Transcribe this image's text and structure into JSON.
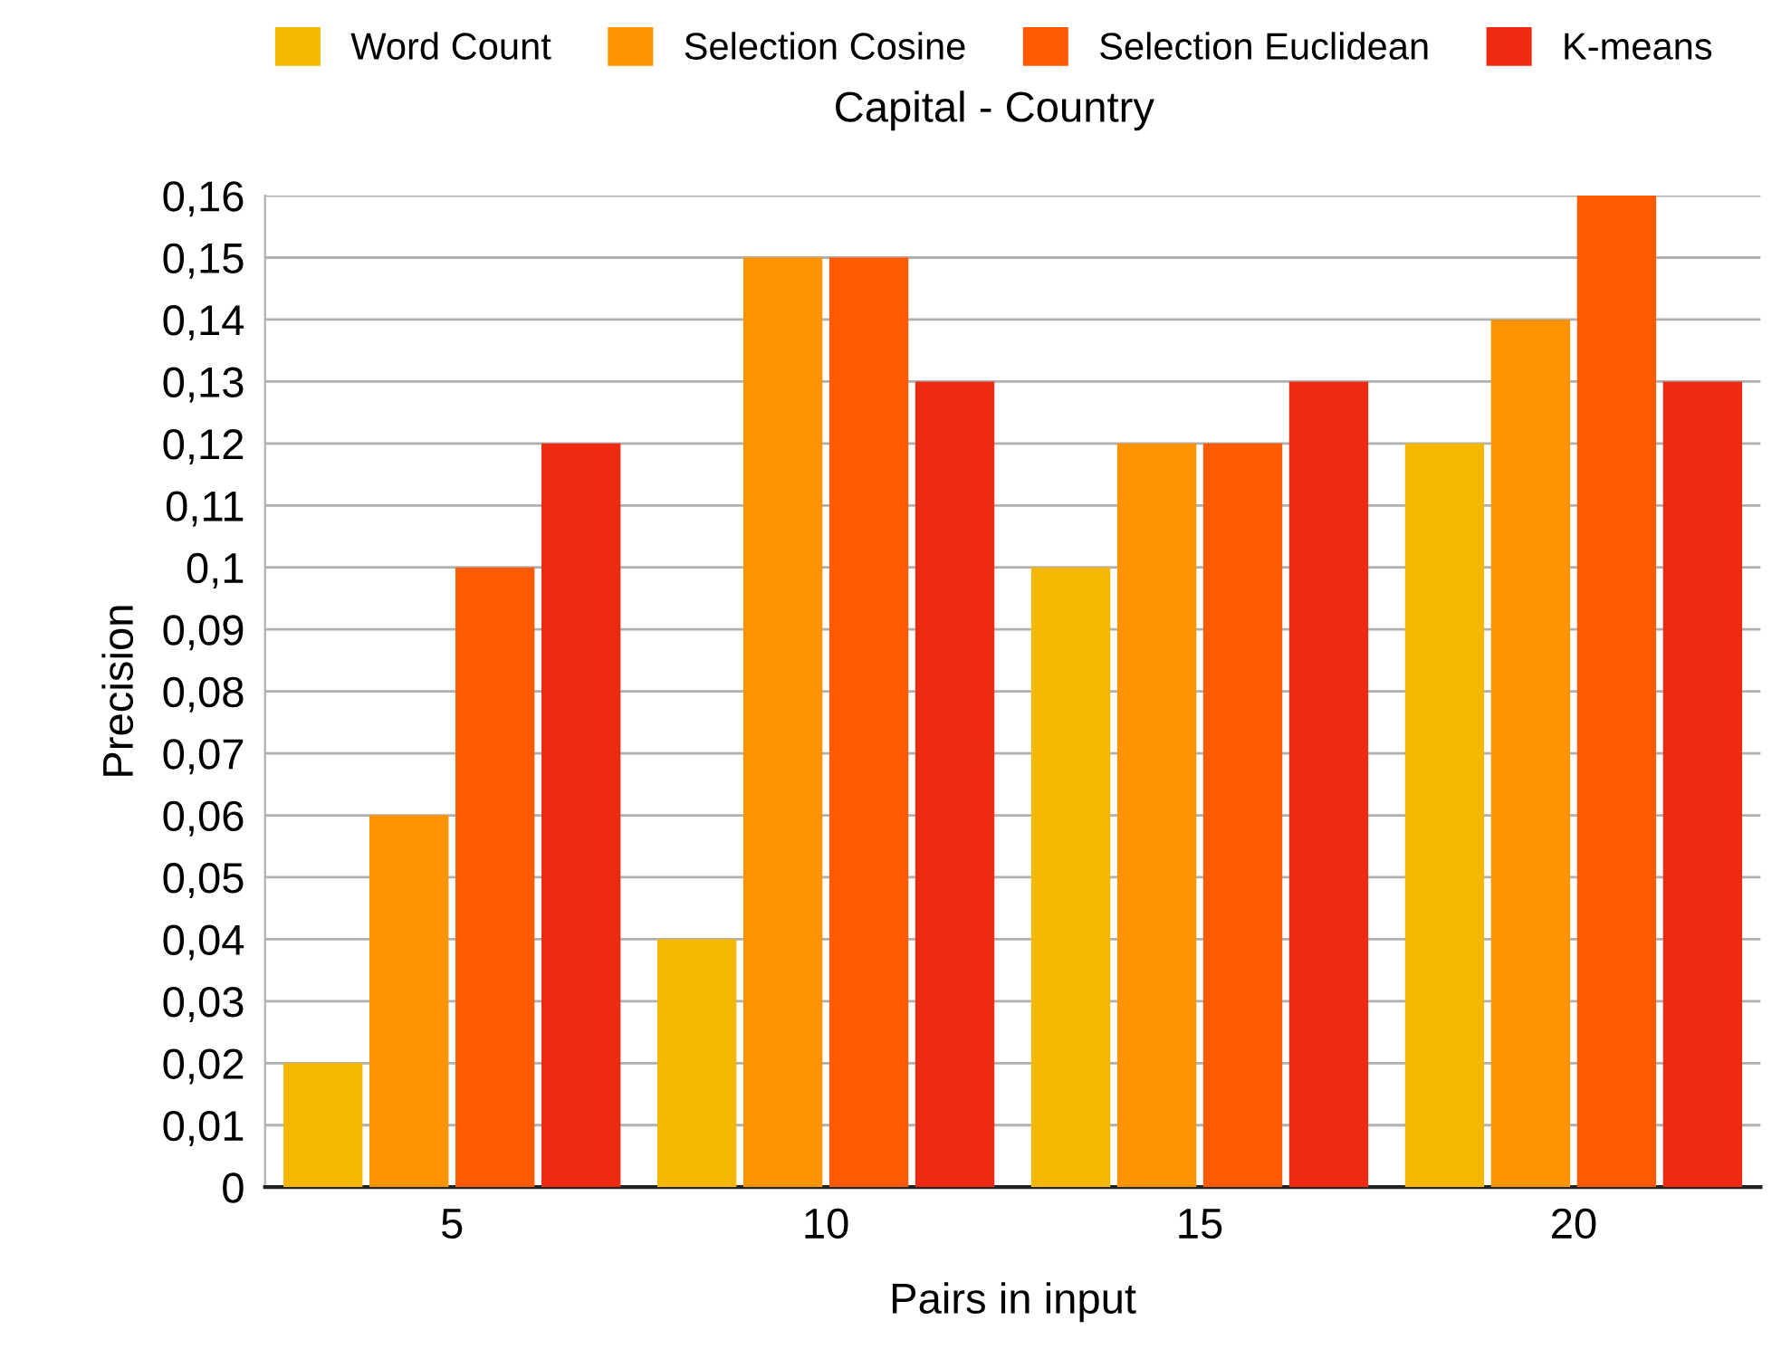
{
  "chart_data": {
    "type": "bar",
    "title": "Capital - Country",
    "xlabel": "Pairs in input",
    "ylabel": "Precision",
    "categories": [
      "5",
      "10",
      "15",
      "20"
    ],
    "series": [
      {
        "name": "Word Count",
        "color": "#f5b800",
        "values": [
          0.02,
          0.04,
          0.1,
          0.12
        ]
      },
      {
        "name": "Selection Cosine",
        "color": "#ff9400",
        "values": [
          0.06,
          0.15,
          0.12,
          0.14
        ]
      },
      {
        "name": "Selection Euclidean",
        "color": "#ff5a00",
        "values": [
          0.1,
          0.15,
          0.12,
          0.16
        ]
      },
      {
        "name": "K-means",
        "color": "#ee2a12",
        "values": [
          0.12,
          0.13,
          0.13,
          0.13
        ]
      }
    ],
    "ylim": [
      0,
      0.16
    ],
    "yticks": [
      0,
      {
        "value": 0.01,
        "label": "0,01"
      },
      {
        "value": 0.02,
        "label": "0,02"
      },
      {
        "value": 0.03,
        "label": "0,03"
      },
      {
        "value": 0.04,
        "label": "0,04"
      },
      {
        "value": 0.05,
        "label": "0,05"
      },
      {
        "value": 0.06,
        "label": "0,06"
      },
      {
        "value": 0.07,
        "label": "0,07"
      },
      {
        "value": 0.08,
        "label": "0,08"
      },
      {
        "value": 0.09,
        "label": "0,09"
      },
      {
        "value": 0.1,
        "label": "0,1"
      },
      {
        "value": 0.11,
        "label": "0,11"
      },
      {
        "value": 0.12,
        "label": "0,12"
      },
      {
        "value": 0.13,
        "label": "0,13"
      },
      {
        "value": 0.14,
        "label": "0,14"
      },
      {
        "value": 0.15,
        "label": "0,15"
      },
      {
        "value": 0.16,
        "label": "0,16"
      }
    ],
    "grid": "y",
    "legend": "top"
  }
}
